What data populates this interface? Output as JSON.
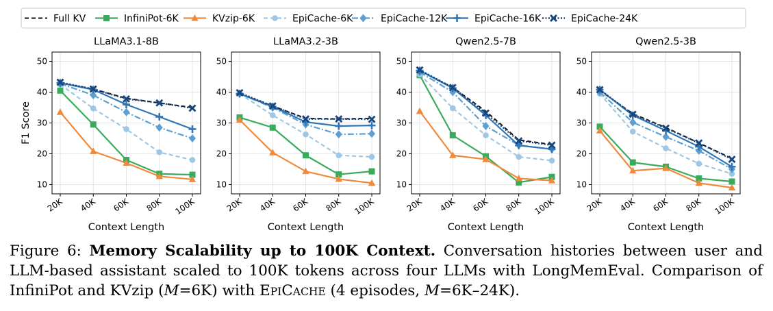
{
  "figure": {
    "legend": [
      {
        "name": "Full KV",
        "color": "#111111",
        "dash": "6,4",
        "marker": "none",
        "width": 2
      },
      {
        "name": "InfiniPot-6K",
        "color": "#3aaa5c",
        "dash": "",
        "marker": "square",
        "width": 2.2
      },
      {
        "name": "KVzip-6K",
        "color": "#ef8a3d",
        "dash": "",
        "marker": "triangle",
        "width": 2.2
      },
      {
        "name": "EpiCache-6K",
        "color": "#9ec7e6",
        "dash": "6,4",
        "marker": "circle",
        "width": 2.2
      },
      {
        "name": "EpiCache-12K",
        "color": "#5d9fd0",
        "dash": "9,3,2,3",
        "marker": "diamond",
        "width": 2.2
      },
      {
        "name": "EpiCache-16K",
        "color": "#2e76b6",
        "dash": "",
        "marker": "plus",
        "width": 2.2
      },
      {
        "name": "EpiCache-24K",
        "color": "#18467e",
        "dash": "2,2.5",
        "marker": "x",
        "width": 2.4
      }
    ]
  },
  "chart_data": [
    {
      "type": "line",
      "title": "LLaMA3.1-8B",
      "xlabel": "Context Length",
      "ylabel": "F1 Score",
      "categories": [
        "20K",
        "40K",
        "60K",
        "80K",
        "100K"
      ],
      "ylim": [
        7,
        53
      ],
      "yticks": [
        "10",
        "20",
        "30",
        "40",
        "50"
      ],
      "grid": true,
      "series": [
        {
          "name": "Full KV",
          "values": [
            43,
            41,
            38,
            36.5,
            35
          ]
        },
        {
          "name": "InfiniPot-6K",
          "values": [
            40.5,
            29.5,
            18,
            13.5,
            13.2
          ]
        },
        {
          "name": "KVzip-6K",
          "values": [
            33.5,
            20.8,
            17,
            12.7,
            11.7
          ]
        },
        {
          "name": "EpiCache-6K",
          "values": [
            42.5,
            34.7,
            28,
            20.5,
            18
          ]
        },
        {
          "name": "EpiCache-12K",
          "values": [
            42.8,
            39,
            33.5,
            28.5,
            25
          ]
        },
        {
          "name": "EpiCache-16K",
          "values": [
            43,
            40.8,
            36,
            32,
            28
          ]
        },
        {
          "name": "EpiCache-24K",
          "values": [
            43.2,
            41,
            37.8,
            36.5,
            34.8
          ]
        }
      ]
    },
    {
      "type": "line",
      "title": "LLaMA3.2-3B",
      "xlabel": "Context Length",
      "ylabel": "",
      "categories": [
        "20K",
        "40K",
        "60K",
        "80K",
        "100K"
      ],
      "ylim": [
        7,
        53
      ],
      "yticks": [
        "10",
        "20",
        "30",
        "40",
        "50"
      ],
      "grid": true,
      "series": [
        {
          "name": "Full KV",
          "values": [
            39.5,
            35.5,
            31.5,
            31.3,
            31.5
          ]
        },
        {
          "name": "InfiniPot-6K",
          "values": [
            31.8,
            28.5,
            19.5,
            13.3,
            14.3
          ]
        },
        {
          "name": "KVzip-6K",
          "values": [
            31,
            20.4,
            14.3,
            11.8,
            10.5
          ]
        },
        {
          "name": "EpiCache-6K",
          "values": [
            39.5,
            32.5,
            26.3,
            19.5,
            19
          ]
        },
        {
          "name": "EpiCache-12K",
          "values": [
            39.5,
            35,
            29.5,
            26.3,
            26.5
          ]
        },
        {
          "name": "EpiCache-16K",
          "values": [
            39.5,
            35.3,
            30.3,
            29,
            29.2
          ]
        },
        {
          "name": "EpiCache-24K",
          "values": [
            39.8,
            35.5,
            31.3,
            31.3,
            31.2
          ]
        }
      ]
    },
    {
      "type": "line",
      "title": "Qwen2.5-7B",
      "xlabel": "Context Length",
      "ylabel": "",
      "categories": [
        "20K",
        "40K",
        "60K",
        "80K",
        "100K"
      ],
      "ylim": [
        7,
        53
      ],
      "yticks": [
        "10",
        "20",
        "30",
        "40",
        "50"
      ],
      "grid": true,
      "series": [
        {
          "name": "Full KV",
          "values": [
            47,
            41.5,
            33.8,
            24.5,
            23
          ]
        },
        {
          "name": "InfiniPot-6K",
          "values": [
            45.5,
            26,
            19.2,
            10.7,
            12.5
          ]
        },
        {
          "name": "KVzip-6K",
          "values": [
            33.8,
            19.5,
            18.2,
            12,
            11.3
          ]
        },
        {
          "name": "EpiCache-6K",
          "values": [
            45.8,
            34.8,
            26,
            19,
            17.8
          ]
        },
        {
          "name": "EpiCache-12K",
          "values": [
            46.5,
            40,
            29,
            22.8,
            21.5
          ]
        },
        {
          "name": "EpiCache-16K",
          "values": [
            47,
            41.3,
            32.5,
            22.7,
            21.5
          ]
        },
        {
          "name": "EpiCache-24K",
          "values": [
            47.2,
            41.5,
            33.2,
            24.2,
            22.8
          ]
        }
      ]
    },
    {
      "type": "line",
      "title": "Qwen2.5-3B",
      "xlabel": "Context Length",
      "ylabel": "",
      "categories": [
        "20K",
        "40K",
        "60K",
        "80K",
        "100K"
      ],
      "ylim": [
        7,
        53
      ],
      "yticks": [
        "10",
        "20",
        "30",
        "40",
        "50"
      ],
      "grid": true,
      "series": [
        {
          "name": "Full KV",
          "values": [
            40.5,
            33,
            28.5,
            23.5,
            18.5
          ]
        },
        {
          "name": "InfiniPot-6K",
          "values": [
            28.8,
            17.2,
            15.8,
            12,
            11
          ]
        },
        {
          "name": "KVzip-6K",
          "values": [
            27.5,
            14.5,
            15.3,
            10.5,
            9
          ]
        },
        {
          "name": "EpiCache-6K",
          "values": [
            39.5,
            27.2,
            21.8,
            16.8,
            13.5
          ]
        },
        {
          "name": "EpiCache-12K",
          "values": [
            40,
            30.2,
            25.5,
            21,
            15
          ]
        },
        {
          "name": "EpiCache-16K",
          "values": [
            40.8,
            32.5,
            27.5,
            22.3,
            15.8
          ]
        },
        {
          "name": "EpiCache-24K",
          "values": [
            40.8,
            32.8,
            28.3,
            23.5,
            18.2
          ]
        }
      ]
    }
  ],
  "caption": {
    "prefix": "Figure 6: ",
    "bold": "Memory Scalability up to 100K Context.",
    "part1": " Conversation histories between user and LLM-based assistant scaled to 100K tokens across four LLMs with LongMemEval. Comparison of InfiniPot and KVzip (",
    "m_var": "M",
    "m_eq1": "=6K) with ",
    "epi_E": "E",
    "epi_PI": "PI",
    "epi_C": "C",
    "epi_ACHE": "ACHE",
    "part2": " (4 episodes, ",
    "m_var2": "M",
    "m_eq2": "=6K–24K)."
  }
}
